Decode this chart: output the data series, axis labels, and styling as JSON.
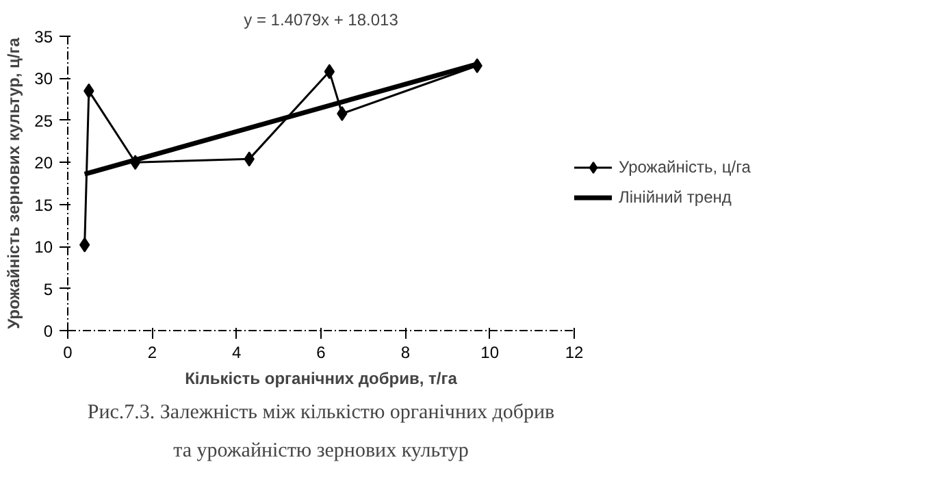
{
  "chart_data": {
    "type": "line",
    "xlabel": "Кількість органічних добрив, т/га",
    "ylabel": "Урожайність зернових культур, ц/га",
    "xlim": [
      0,
      12
    ],
    "xticks": [
      0,
      2,
      4,
      6,
      8,
      10,
      12
    ],
    "ylim": [
      0,
      35
    ],
    "yticks": [
      0,
      5,
      10,
      15,
      20,
      25,
      30,
      35
    ],
    "grid": false,
    "legend": "right",
    "series": [
      {
        "name": "Урожайність, ц/га",
        "color": "#000000",
        "marker": "diamond",
        "x": [
          0.4,
          0.5,
          1.6,
          4.3,
          6.2,
          6.5,
          9.7
        ],
        "values": [
          10.2,
          28.5,
          20.0,
          20.4,
          30.8,
          25.8,
          31.5
        ]
      },
      {
        "name": "Лінійний тренд",
        "color": "#000000",
        "marker": "none",
        "x": [
          0.4,
          9.7
        ],
        "values": [
          18.6,
          31.7
        ]
      }
    ],
    "annotations": [
      "y = 1.4079x + 18.013",
      "Рис.7.3. Залежність між кількістю органічних добрив",
      "та урожайністю зернових культур"
    ]
  }
}
